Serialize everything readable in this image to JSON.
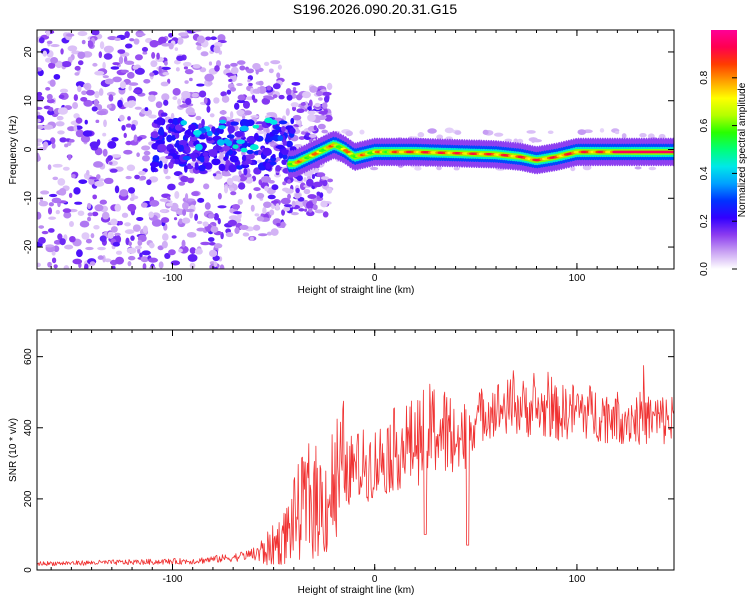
{
  "title": "S196.2026.090.20.31.G15",
  "chart_data": [
    {
      "type": "heatmap",
      "xlabel": "Height of straight line (km)",
      "ylabel": "Frequency (Hz)",
      "xlim": [
        -167,
        148
      ],
      "ylim": [
        -24.5,
        24.5
      ],
      "xticks": [
        -100,
        0,
        100
      ],
      "yticks": [
        -20,
        -10,
        0,
        10,
        20
      ],
      "xtick_labels": [
        "-100",
        "0",
        "100"
      ],
      "ytick_labels": [
        "-20",
        "-10",
        "0",
        "10",
        "20"
      ],
      "colorbar": {
        "label": "Normalized spectral amplitude",
        "range": [
          0,
          1
        ],
        "ticks": [
          0.0,
          0.2,
          0.4,
          0.6,
          0.8
        ],
        "tick_labels": [
          "0.0",
          "0.2",
          "0.4",
          "0.6",
          "0.8"
        ],
        "colors": [
          "#ffffff",
          "#c9a2f3",
          "#8c3cf0",
          "#3200ff",
          "#0032ff",
          "#00a0ff",
          "#00e8e8",
          "#00ff78",
          "#28ff00",
          "#b4ff00",
          "#ffff00",
          "#ffa000",
          "#ff3c00",
          "#ff0050",
          "#ff0096"
        ]
      },
      "ridge": [
        {
          "x": -40,
          "f": -3
        },
        {
          "x": -30,
          "f": -1
        },
        {
          "x": -20,
          "f": 1
        },
        {
          "x": -15,
          "f": 0
        },
        {
          "x": -10,
          "f": -1.5
        },
        {
          "x": 0,
          "f": -0.5
        },
        {
          "x": 20,
          "f": -0.5
        },
        {
          "x": 60,
          "f": -1
        },
        {
          "x": 72,
          "f": -1.5
        },
        {
          "x": 80,
          "f": -2.2
        },
        {
          "x": 90,
          "f": -1.5
        },
        {
          "x": 100,
          "f": -0.5
        },
        {
          "x": 148,
          "f": -0.5
        }
      ]
    },
    {
      "type": "line",
      "xlabel": "Height of straight line (km)",
      "ylabel": "SNR (10 * v/v)",
      "xlim": [
        -167,
        148
      ],
      "ylim": [
        0,
        675
      ],
      "xticks": [
        -100,
        0,
        100
      ],
      "yticks": [
        0,
        200,
        400,
        600
      ],
      "xtick_labels": [
        "-100",
        "0",
        "100"
      ],
      "ytick_labels": [
        "0",
        "200",
        "400",
        "600"
      ],
      "line_color": "#f03232",
      "envelope": [
        {
          "x": -167,
          "y": 18
        },
        {
          "x": -120,
          "y": 22
        },
        {
          "x": -90,
          "y": 25
        },
        {
          "x": -70,
          "y": 35
        },
        {
          "x": -55,
          "y": 50
        },
        {
          "x": -45,
          "y": 90
        },
        {
          "x": -38,
          "y": 160
        },
        {
          "x": -32,
          "y": 200
        },
        {
          "x": -25,
          "y": 180
        },
        {
          "x": -20,
          "y": 240
        },
        {
          "x": -10,
          "y": 290
        },
        {
          "x": 0,
          "y": 300
        },
        {
          "x": 10,
          "y": 340
        },
        {
          "x": 20,
          "y": 360
        },
        {
          "x": 30,
          "y": 400
        },
        {
          "x": 40,
          "y": 370
        },
        {
          "x": 47,
          "y": 400
        },
        {
          "x": 55,
          "y": 450
        },
        {
          "x": 70,
          "y": 460
        },
        {
          "x": 90,
          "y": 440
        },
        {
          "x": 100,
          "y": 450
        },
        {
          "x": 120,
          "y": 430
        },
        {
          "x": 148,
          "y": 420
        }
      ],
      "dips": [
        {
          "x": 25,
          "y": 100
        },
        {
          "x": 46,
          "y": 70
        }
      ]
    }
  ]
}
